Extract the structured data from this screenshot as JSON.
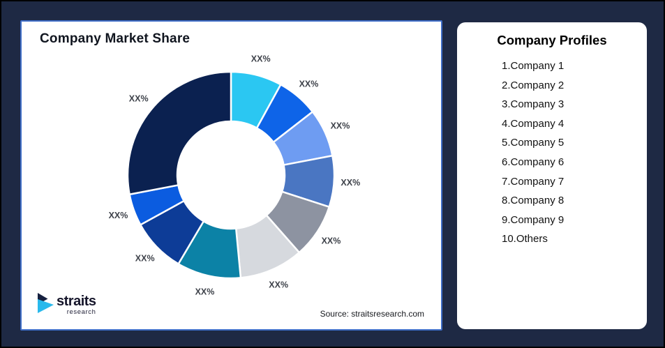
{
  "page": {
    "background_color": "#1e2944",
    "frame_border_color": "#000000"
  },
  "chart_panel": {
    "title": "Company Market Share",
    "source": "Source: straitsresearch.com",
    "border_color": "#3f6ec8",
    "background_color": "#ffffff"
  },
  "chart_data": {
    "type": "pie",
    "variant": "donut",
    "title": "Company Market Share",
    "start_angle": "top",
    "direction": "clockwise",
    "inner_radius_ratio": 0.52,
    "label_distance_ratio": 1.16,
    "slice_label_color": "#3e424a",
    "gap_color": "#ffffff",
    "segments": [
      {
        "label": "XX%",
        "value": 8,
        "color": "#2bc7f2"
      },
      {
        "label": "XX%",
        "value": 6.5,
        "color": "#0e64e8"
      },
      {
        "label": "XX%",
        "value": 7.5,
        "color": "#6e9cf2"
      },
      {
        "label": "XX%",
        "value": 8,
        "color": "#4a76c2"
      },
      {
        "label": "XX%",
        "value": 8.5,
        "color": "#8d93a1"
      },
      {
        "label": "XX%",
        "value": 10,
        "color": "#d6d9de"
      },
      {
        "label": "XX%",
        "value": 10,
        "color": "#0c82a6"
      },
      {
        "label": "XX%",
        "value": 8.5,
        "color": "#0d3c97"
      },
      {
        "label": "XX%",
        "value": 5,
        "color": "#0b5ce0"
      },
      {
        "label": "XX%",
        "value": 28,
        "color": "#0b2150"
      }
    ]
  },
  "profiles_panel": {
    "title": "Company Profiles",
    "items": [
      "1.Company 1",
      "2.Company 2",
      "3.Company 3",
      "4.Company 4",
      "5.Company 5",
      "6.Company 6",
      "7.Company 7",
      "8.Company 8",
      "9.Company 9",
      "10.Others"
    ]
  },
  "logo": {
    "name": "straits",
    "subname": "research",
    "mark_navy_color": "#16203f",
    "mark_cyan_color": "#29b9ec"
  }
}
